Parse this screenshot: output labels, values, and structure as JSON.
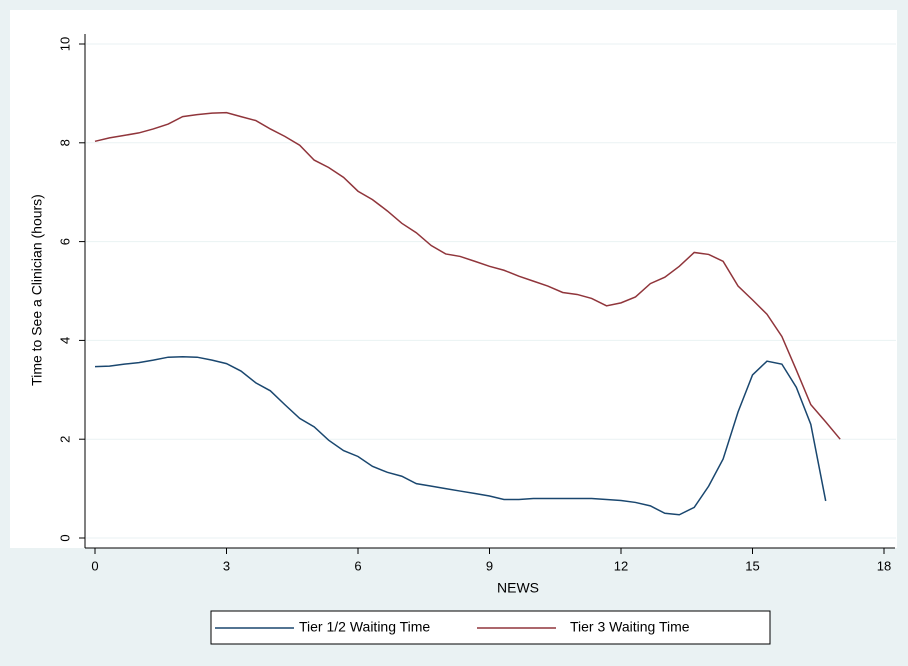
{
  "chart_data": {
    "type": "line",
    "x_label": "NEWS",
    "y_label": "Time to See a Clinician (hours)",
    "x": [
      0,
      0.33,
      0.67,
      1,
      1.33,
      1.67,
      2,
      2.33,
      2.67,
      3,
      3.33,
      3.67,
      4,
      4.33,
      4.67,
      5,
      5.33,
      5.67,
      6,
      6.33,
      6.67,
      7,
      7.33,
      7.67,
      8,
      8.33,
      8.67,
      9,
      9.33,
      9.67,
      10,
      10.33,
      10.67,
      11,
      11.33,
      11.67,
      12,
      12.33,
      12.67,
      13,
      13.33,
      13.67,
      14,
      14.33,
      14.67,
      15,
      15.33,
      15.67,
      16,
      16.33,
      16.67,
      17
    ],
    "series": [
      {
        "name": "Tier 1/2 Waiting Time",
        "color": "#1a476f",
        "values": [
          3.47,
          3.48,
          3.52,
          3.55,
          3.6,
          3.66,
          3.67,
          3.66,
          3.6,
          3.53,
          3.38,
          3.14,
          2.98,
          2.7,
          2.42,
          2.25,
          1.98,
          1.77,
          1.65,
          1.45,
          1.33,
          1.25,
          1.1,
          1.05,
          1.0,
          0.95,
          0.9,
          0.85,
          0.78,
          0.78,
          0.8,
          0.8,
          0.8,
          0.8,
          0.8,
          0.78,
          0.76,
          0.72,
          0.65,
          0.5,
          0.47,
          0.62,
          1.05,
          1.6,
          2.55,
          3.3,
          3.58,
          3.52,
          3.05,
          2.3,
          0.75,
          null
        ]
      },
      {
        "name": "Tier 3 Waiting Time",
        "color": "#90353b",
        "values": [
          8.03,
          8.1,
          8.15,
          8.2,
          8.28,
          8.38,
          8.53,
          8.57,
          8.6,
          8.61,
          8.53,
          8.45,
          8.28,
          8.13,
          7.95,
          7.65,
          7.5,
          7.3,
          7.02,
          6.85,
          6.62,
          6.37,
          6.18,
          5.92,
          5.75,
          5.7,
          5.6,
          5.5,
          5.42,
          5.3,
          5.2,
          5.1,
          4.97,
          4.93,
          4.85,
          4.7,
          4.76,
          4.88,
          5.15,
          5.28,
          5.5,
          5.78,
          5.74,
          5.6,
          5.1,
          4.82,
          4.53,
          4.08,
          3.4,
          2.7,
          2.35,
          2.0
        ]
      }
    ],
    "xlim": [
      0,
      18
    ],
    "xticks": [
      0,
      3,
      6,
      9,
      12,
      15,
      18
    ],
    "ylim": [
      0,
      10
    ],
    "yticks": [
      0,
      2,
      4,
      6,
      8,
      10
    ],
    "grid": true,
    "legend": "bottom"
  }
}
